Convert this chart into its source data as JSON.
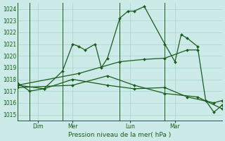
{
  "bg_color": "#cceae8",
  "grid_color": "#aad4cc",
  "line_color": "#1a5c1a",
  "marker_color": "#1a5c1a",
  "title": "Pression niveau de la mer( hPa )",
  "ylabel_ticks": [
    1015,
    1016,
    1017,
    1018,
    1019,
    1020,
    1021,
    1022,
    1023,
    1024
  ],
  "ylim": [
    1014.5,
    1024.5
  ],
  "xlim": [
    0,
    100
  ],
  "x_tick_pos": [
    10,
    27,
    55,
    77
  ],
  "x_tick_labels": [
    "Dim",
    "Mer",
    "Lun",
    "Mar"
  ],
  "x_vlines": [
    6,
    22,
    50,
    72
  ],
  "series": [
    {
      "x": [
        0,
        6,
        13,
        22,
        27,
        30,
        33,
        38,
        41,
        44,
        50,
        54,
        57,
        62,
        72,
        77,
        80,
        83,
        88,
        92,
        96,
        100
      ],
      "y": [
        1017.7,
        1017.0,
        1017.2,
        1018.7,
        1021.0,
        1020.8,
        1020.5,
        1021.0,
        1019.0,
        1019.8,
        1023.2,
        1023.8,
        1023.8,
        1024.2,
        1021.0,
        1019.5,
        1021.8,
        1021.5,
        1020.8,
        1016.2,
        1015.2,
        1015.8
      ]
    },
    {
      "x": [
        0,
        13,
        27,
        44,
        57,
        72,
        83,
        96,
        100
      ],
      "y": [
        1017.5,
        1017.2,
        1018.0,
        1017.5,
        1017.2,
        1017.3,
        1016.5,
        1016.0,
        1016.2
      ]
    },
    {
      "x": [
        0,
        30,
        50,
        62,
        72,
        83,
        88
      ],
      "y": [
        1017.5,
        1018.5,
        1019.5,
        1019.7,
        1019.8,
        1020.5,
        1020.5
      ]
    },
    {
      "x": [
        0,
        27,
        44,
        57,
        72,
        88,
        100
      ],
      "y": [
        1017.3,
        1017.5,
        1018.3,
        1017.5,
        1016.8,
        1016.5,
        1015.5
      ]
    }
  ]
}
